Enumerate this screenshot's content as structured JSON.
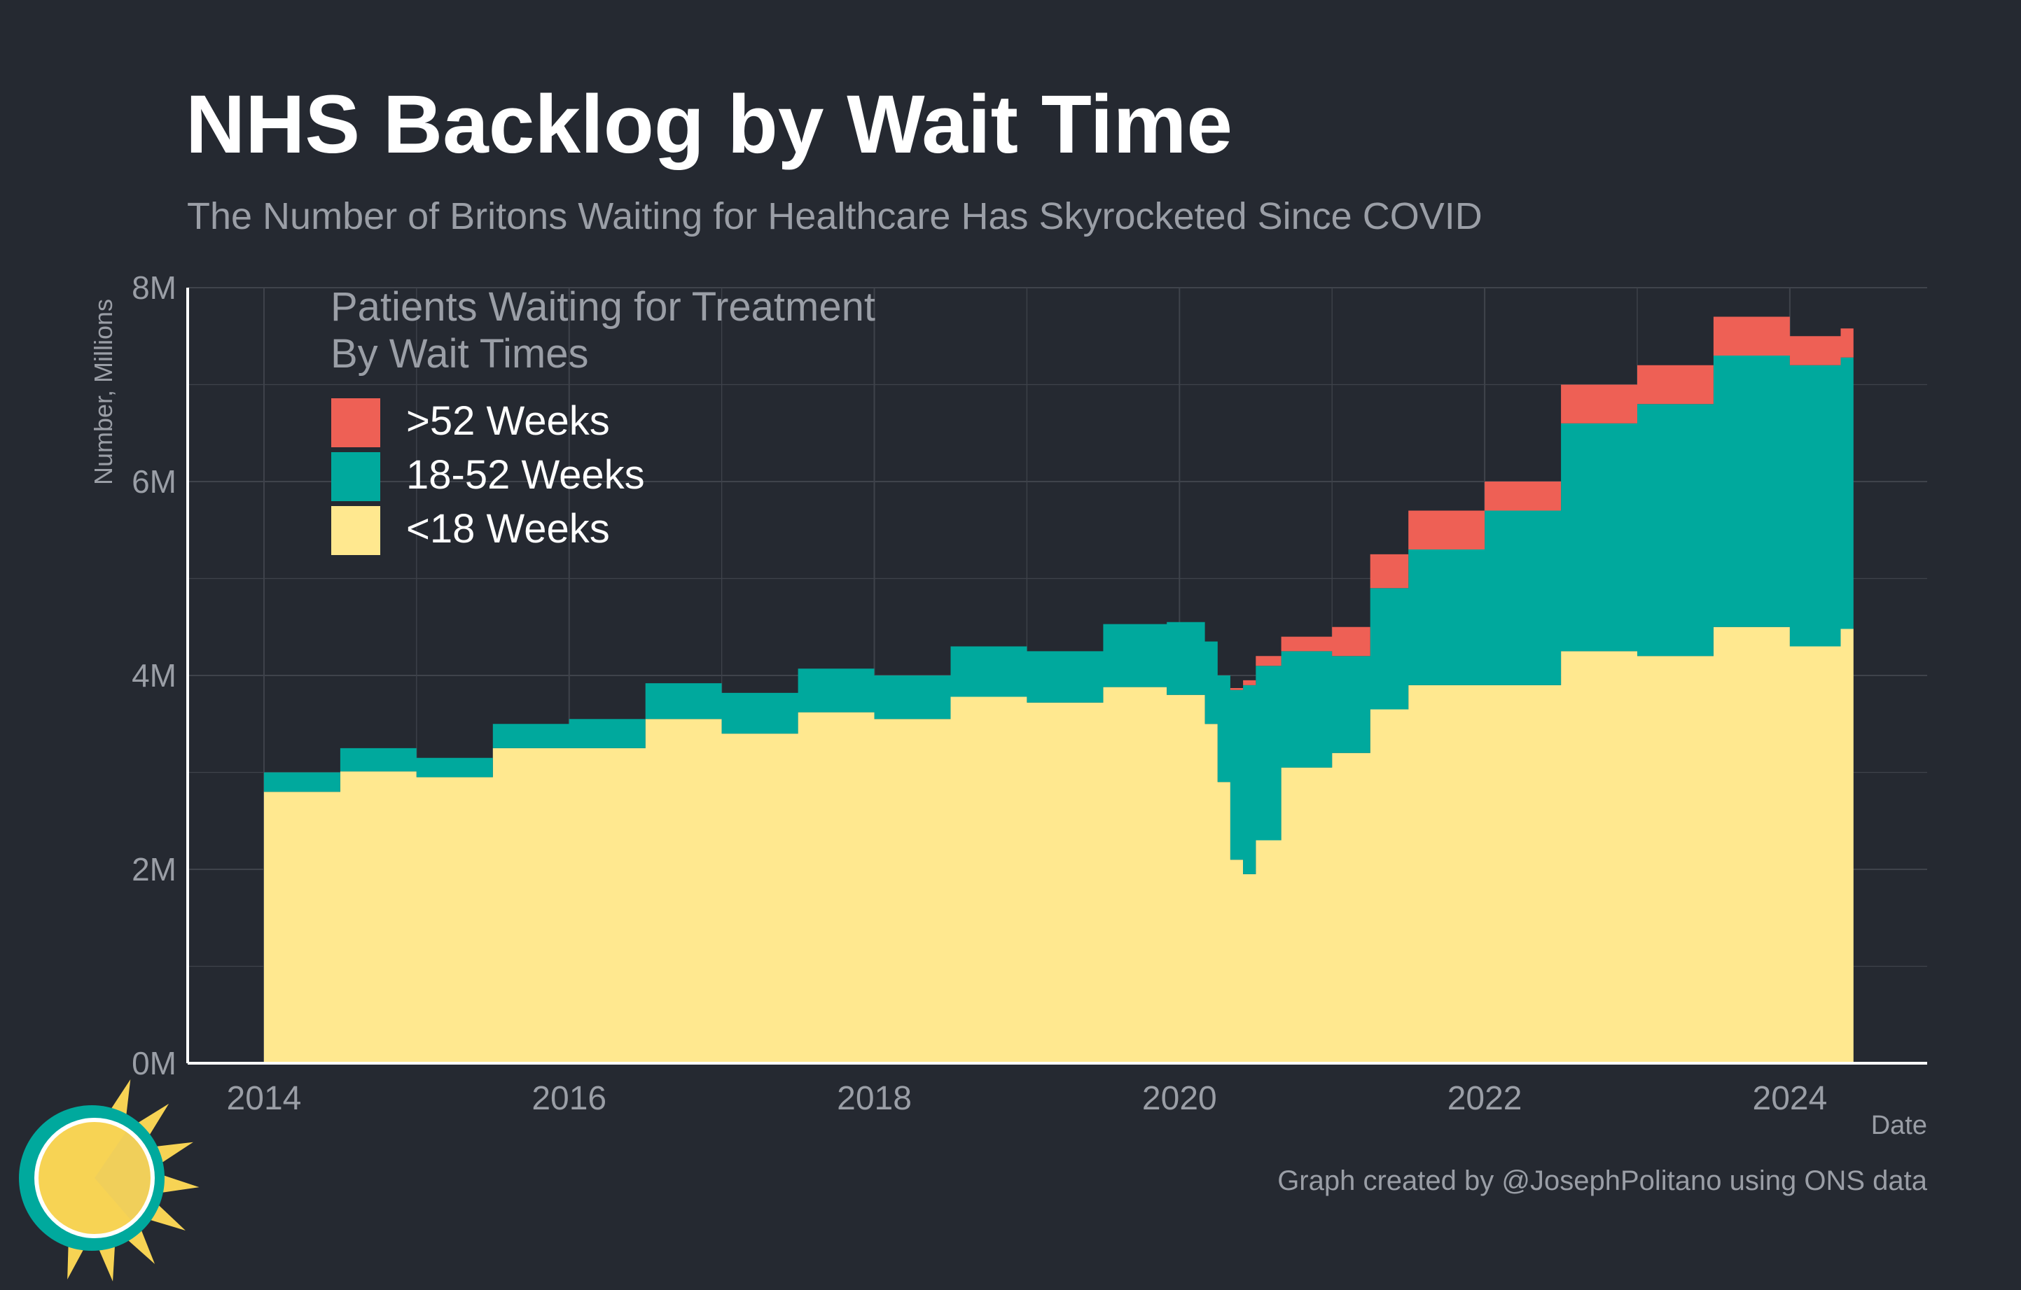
{
  "header": {
    "title": "NHS Backlog by Wait Time",
    "subtitle": "The Number of Britons Waiting for Healthcare Has Skyrocketed Since COVID"
  },
  "footer": {
    "caption": "Graph created by @JosephPolitano using ONS data"
  },
  "colors": {
    "background": "#252931",
    "gridline": "#3f434b",
    "axis": "#ffffff",
    "over52": "#ee6055",
    "w18to52": "#00a99d",
    "under18": "#ffe88f",
    "logo_sun": "#f7d354",
    "logo_ring": "#00a99d"
  },
  "logo": {
    "icon": "sun-clock-logo"
  },
  "chart_data": {
    "type": "area",
    "stacked": true,
    "step": true,
    "title": "NHS Backlog by Wait Time",
    "subtitle": "The Number of Britons Waiting for Healthcare Has Skyrocketed Since COVID",
    "xlabel": "Date",
    "ylabel": "Number, Millions",
    "xlim": [
      2013.5,
      2024.9
    ],
    "ylim": [
      0,
      8
    ],
    "x_ticks": [
      2014,
      2016,
      2018,
      2020,
      2022,
      2024
    ],
    "x_tick_labels": [
      "2014",
      "2016",
      "2018",
      "2020",
      "2022",
      "2024"
    ],
    "y_ticks": [
      0,
      2,
      4,
      6,
      8
    ],
    "y_tick_labels": [
      "0M",
      "2M",
      "4M",
      "6M",
      "8M"
    ],
    "grid": true,
    "legend": {
      "title": "Patients Waiting for Treatment\nBy Wait Times",
      "title_lines": [
        "Patients Waiting for Treatment",
        "By Wait Times"
      ],
      "placement": "top-left",
      "entries": [
        {
          "label": ">52 Weeks",
          "color": "#ee6055"
        },
        {
          "label": "18-52 Weeks",
          "color": "#00a99d"
        },
        {
          "label": "<18 Weeks",
          "color": "#ffe88f"
        }
      ]
    },
    "x": [
      "2014-01",
      "2014-07",
      "2015-01",
      "2015-07",
      "2016-01",
      "2016-07",
      "2017-01",
      "2017-07",
      "2018-01",
      "2018-07",
      "2019-01",
      "2019-07",
      "2019-12",
      "2020-02",
      "2020-03",
      "2020-04",
      "2020-05",
      "2020-06",
      "2020-07",
      "2020-09",
      "2021-01",
      "2021-04",
      "2021-07",
      "2022-01",
      "2022-07",
      "2023-01",
      "2023-07",
      "2024-01",
      "2024-05"
    ],
    "series": [
      {
        "name": "<18 Weeks",
        "color": "#ffe88f",
        "values": [
          2.8,
          3.01,
          2.95,
          3.25,
          3.25,
          3.55,
          3.4,
          3.62,
          3.55,
          3.78,
          3.72,
          3.88,
          3.8,
          3.8,
          3.5,
          2.9,
          2.1,
          1.95,
          2.3,
          3.05,
          3.2,
          3.65,
          3.9,
          3.9,
          4.25,
          4.2,
          4.5,
          4.3,
          4.48
        ]
      },
      {
        "name": "18-52 Weeks",
        "color": "#00a99d",
        "values": [
          0.2,
          0.24,
          0.2,
          0.25,
          0.3,
          0.37,
          0.42,
          0.45,
          0.45,
          0.52,
          0.53,
          0.65,
          0.75,
          0.75,
          0.85,
          1.1,
          1.75,
          1.95,
          1.8,
          1.2,
          1.0,
          1.25,
          1.4,
          1.8,
          2.35,
          2.6,
          2.8,
          2.9,
          2.8
        ]
      },
      {
        "name": ">52 Weeks",
        "color": "#ee6055",
        "values": [
          0.0,
          0.0,
          0.0,
          0.0,
          0.0,
          0.0,
          0.0,
          0.0,
          0.0,
          0.0,
          0.0,
          0.0,
          0.0,
          0.0,
          0.0,
          0.0,
          0.02,
          0.05,
          0.1,
          0.15,
          0.3,
          0.35,
          0.4,
          0.3,
          0.4,
          0.4,
          0.4,
          0.3,
          0.3
        ]
      }
    ]
  }
}
